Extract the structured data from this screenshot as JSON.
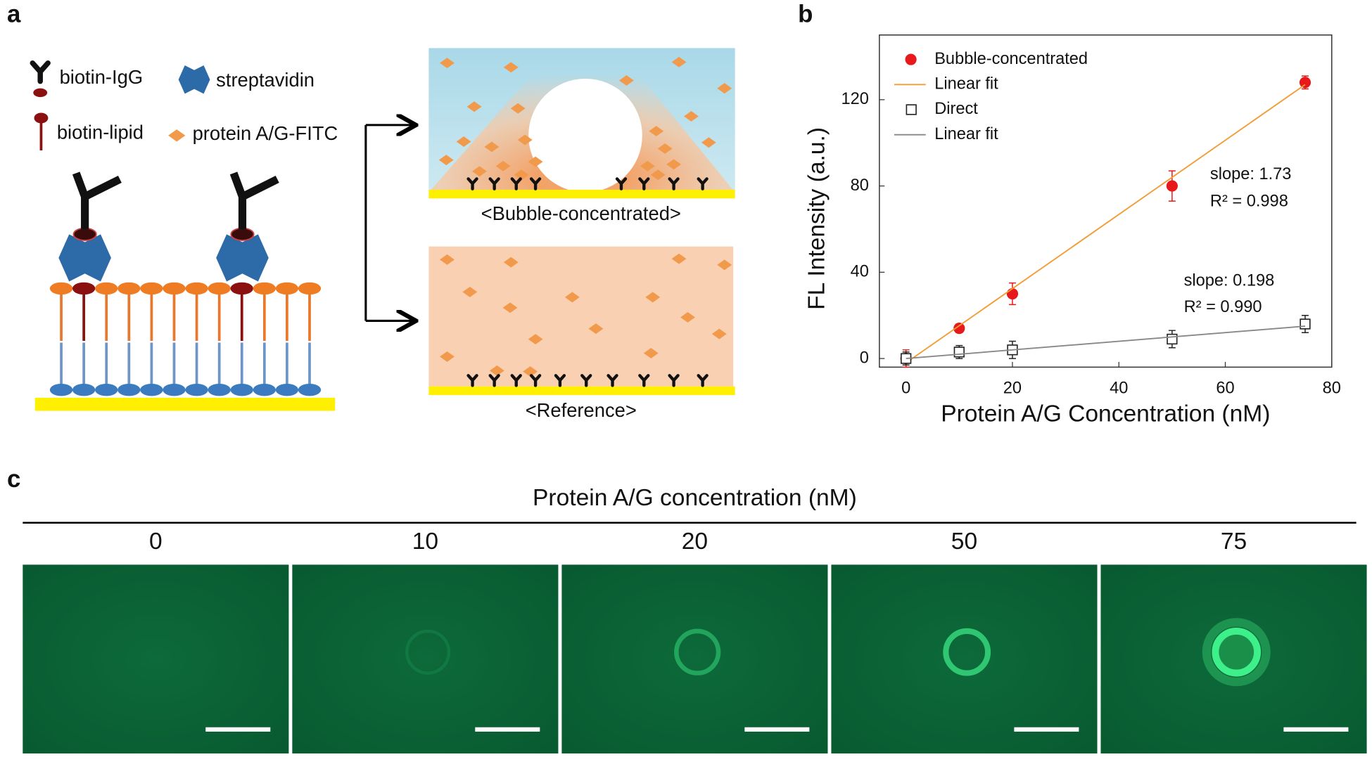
{
  "panel_labels": [
    "a",
    "b",
    "c"
  ],
  "diagram": {
    "legend": [
      "biotin-IgG",
      "streptavidin",
      "biotin-lipid",
      "protein A/G-FITC"
    ],
    "captions": [
      "<Bubble-concentrated>",
      "<Reference>"
    ]
  },
  "chart_data": {
    "type": "scatter",
    "x_label": "Protein A/G Concentration (nM)",
    "y_label": "FL Intensity (a.u.)",
    "xlim": [
      -5,
      80
    ],
    "ylim": [
      -4,
      150
    ],
    "xticks": [
      0,
      20,
      40,
      60,
      80
    ],
    "yticks": [
      0,
      40,
      80,
      120
    ],
    "legend": "upper left",
    "series": [
      {
        "name": "Bubble-concentrated",
        "color": "#e8191a",
        "kind": "points",
        "marker": "circle",
        "x": [
          0,
          10,
          20,
          50,
          75
        ],
        "values": [
          0,
          14,
          30,
          80,
          128
        ],
        "errors": [
          4,
          2,
          5,
          7,
          3
        ]
      },
      {
        "name": "Linear fit",
        "color": "#f39c34",
        "kind": "line",
        "x": [
          0,
          75
        ],
        "values": [
          -2,
          127
        ]
      },
      {
        "name": "Direct",
        "color": "#222222",
        "kind": "points",
        "marker": "square",
        "x": [
          0,
          10,
          20,
          50,
          75
        ],
        "values": [
          0,
          3,
          4,
          9,
          16
        ],
        "errors": [
          3,
          3,
          4,
          4,
          4
        ]
      },
      {
        "name": "Linear fit",
        "color": "#888888",
        "kind": "line",
        "x": [
          0,
          75
        ],
        "values": [
          0,
          15
        ]
      }
    ],
    "annotations": [
      "slope: 1.73",
      "R² = 0.998",
      "slope: 0.198",
      "R² = 0.990"
    ]
  },
  "images": {
    "title": "Protein A/G concentration (nM)",
    "labels": [
      "0",
      "10",
      "20",
      "50",
      "75"
    ]
  }
}
